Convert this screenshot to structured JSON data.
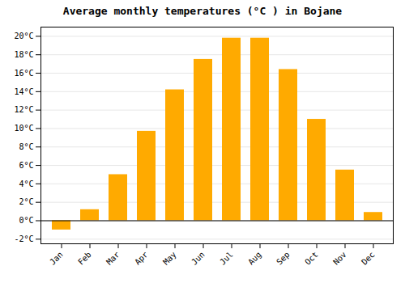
{
  "chart_data": {
    "type": "bar",
    "title": "Average monthly temperatures (°C ) in Bojane",
    "categories": [
      "Jan",
      "Feb",
      "Mar",
      "Apr",
      "May",
      "Jun",
      "Jul",
      "Aug",
      "Sep",
      "Oct",
      "Nov",
      "Dec"
    ],
    "values": [
      -1.0,
      1.2,
      5.0,
      9.7,
      14.2,
      17.5,
      19.8,
      19.8,
      16.4,
      11.0,
      5.5,
      0.9
    ],
    "color": "#FFAA00",
    "ylim": [
      -2.5,
      21
    ],
    "yticks": [
      {
        "value": -2,
        "label": "-2°C"
      },
      {
        "value": 0,
        "label": "0°C"
      },
      {
        "value": 2,
        "label": "2°C"
      },
      {
        "value": 4,
        "label": "4°C"
      },
      {
        "value": 6,
        "label": "6°C"
      },
      {
        "value": 8,
        "label": "8°C"
      },
      {
        "value": 10,
        "label": "10°C"
      },
      {
        "value": 12,
        "label": "12°C"
      },
      {
        "value": 14,
        "label": "14°C"
      },
      {
        "value": 16,
        "label": "16°C"
      },
      {
        "value": 18,
        "label": "18°C"
      },
      {
        "value": 20,
        "label": "20°C"
      }
    ],
    "grid": true
  }
}
